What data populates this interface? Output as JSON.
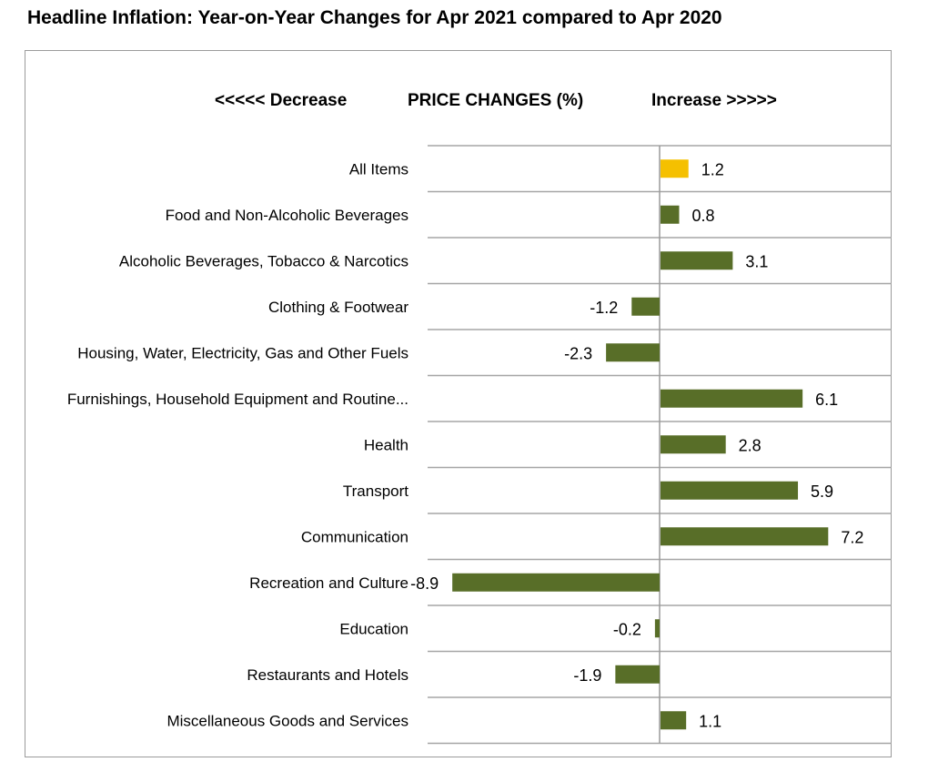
{
  "page": {
    "title": "Headline Inflation: Year-on-Year Changes for Apr 2021 compared to Apr 2020",
    "header_decrease": "<<<<< Decrease",
    "header_center": "PRICE  CHANGES (%)",
    "header_increase": "Increase  >>>>>"
  },
  "chart_data": {
    "type": "bar",
    "orientation": "horizontal",
    "categories": [
      "All Items",
      "Food and Non-Alcoholic Beverages",
      "Alcoholic Beverages, Tobacco & Narcotics",
      "Clothing & Footwear",
      "Housing, Water, Electricity, Gas and Other Fuels",
      "Furnishings, Household Equipment and Routine...",
      "Health",
      "Transport",
      "Communication",
      "Recreation and Culture",
      "Education",
      "Restaurants and Hotels",
      "Miscellaneous Goods and Services"
    ],
    "values": [
      1.2,
      0.8,
      3.1,
      -1.2,
      -2.3,
      6.1,
      2.8,
      5.9,
      7.2,
      -8.9,
      -0.2,
      -1.9,
      1.1
    ],
    "value_labels": [
      "1.2",
      "0.8",
      "3.1",
      "-1.2",
      "-2.3",
      "6.1",
      "2.8",
      "5.9",
      "7.2",
      "-8.9",
      "-0.2",
      "-1.9",
      "1.1"
    ],
    "highlight_index": 0,
    "colors": {
      "bar": "#586e28",
      "highlight": "#f5c000",
      "grid": "#a6a6a6"
    },
    "xlim": [
      -8.9,
      10
    ],
    "grid": "horizontal row separators",
    "legend": "none"
  }
}
